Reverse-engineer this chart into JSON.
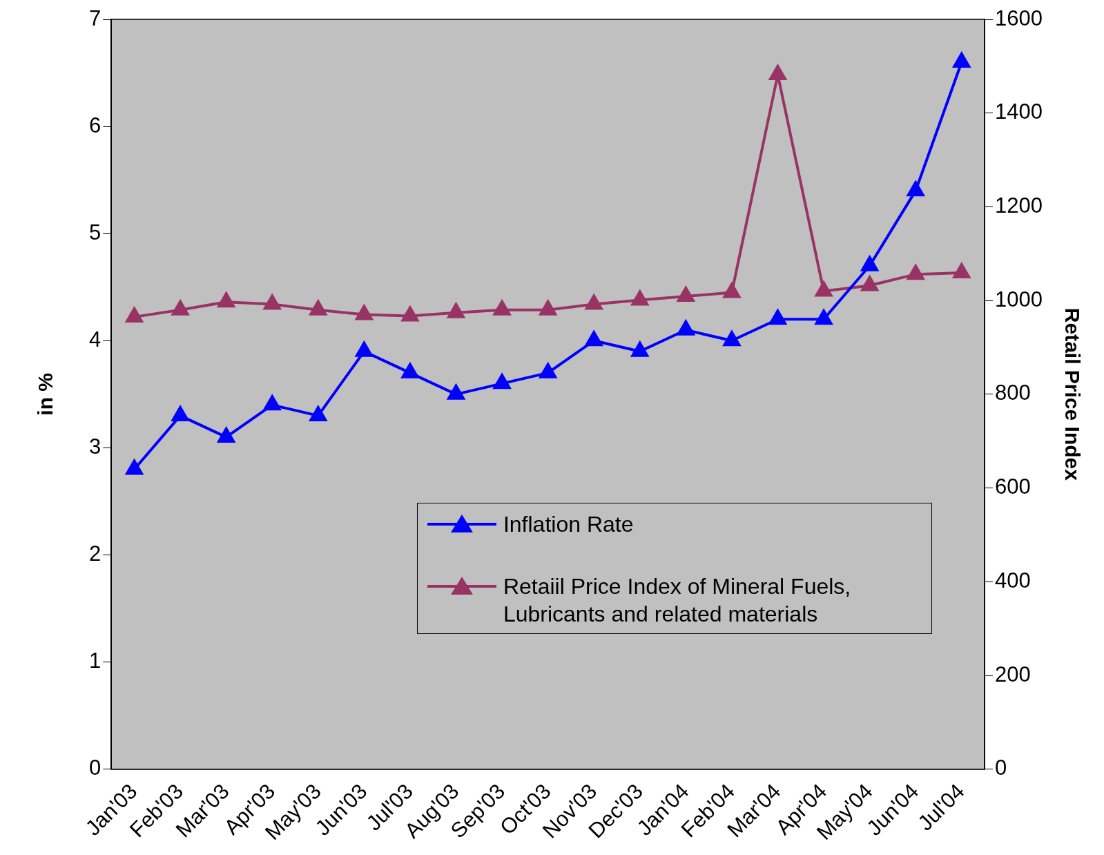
{
  "chart_data": {
    "type": "line",
    "categories": [
      "Jan'03",
      "Feb'03",
      "Mar'03",
      "Apr'03",
      "May'03",
      "Jun'03",
      "Jul'03",
      "Aug'03",
      "Sep'03",
      "Oct'03",
      "Nov'03",
      "Dec'03",
      "Jan'04",
      "Feb'04",
      "Mar'04",
      "Apr'04",
      "May'04",
      "Jun'04",
      "Jul'04"
    ],
    "series": [
      {
        "name": "Inflation Rate",
        "color": "#0000ff",
        "values": [
          2.8,
          3.3,
          3.1,
          3.4,
          3.3,
          3.9,
          3.7,
          3.5,
          3.6,
          3.7,
          4.0,
          3.9,
          4.1,
          4.0,
          4.2,
          4.2,
          4.7,
          5.4,
          6.6
        ]
      },
      {
        "name": "Retaiil Price Index of Mineral Fuels, Lubricants and related materials",
        "color": "#993366",
        "axis": "y2",
        "values": [
          965,
          980,
          997,
          992,
          980,
          970,
          967,
          974,
          980,
          980,
          992,
          1001,
          1009,
          1017,
          1482,
          1020,
          1032,
          1056,
          1059
        ]
      }
    ],
    "ylabel": "in %",
    "y2label": "Retail Price Index",
    "ylim": [
      0,
      7
    ],
    "yticks": [
      0,
      1,
      2,
      3,
      4,
      5,
      6,
      7
    ],
    "y2lim": [
      0,
      1600
    ],
    "y2ticks": [
      0,
      200,
      400,
      600,
      800,
      1000,
      1200,
      1400,
      1600
    ],
    "grid": false,
    "legend": "bottom right",
    "marker": "triangle",
    "line_style": "solid"
  }
}
